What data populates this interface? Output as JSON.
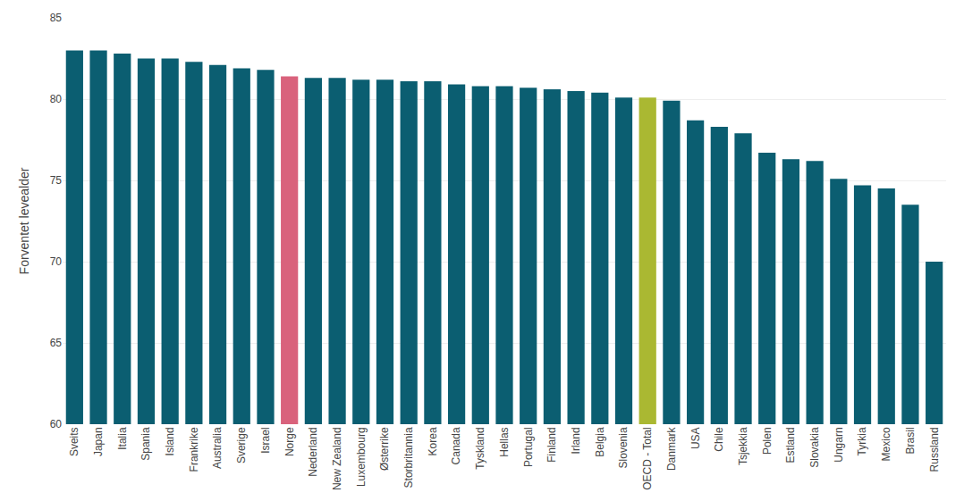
{
  "chart_data": {
    "type": "bar",
    "categories": [
      "Sveits",
      "Japan",
      "Italia",
      "Spania",
      "Island",
      "Frankrike",
      "Australia",
      "Sverige",
      "Israel",
      "Norge",
      "Nederland",
      "New Zealand",
      "Luxembourg",
      "Østerrike",
      "Storbritannia",
      "Korea",
      "Canada",
      "Tyskland",
      "Hellas",
      "Portugal",
      "Finland",
      "Irland",
      "Belgia",
      "Slovenia",
      "OECD - Total",
      "Danmark",
      "USA",
      "Chile",
      "Tsjekkia",
      "Polen",
      "Estland",
      "Slovakia",
      "Ungarn",
      "Tyrkia",
      "Mexico",
      "Brasil",
      "Russland"
    ],
    "values": [
      83.0,
      83.0,
      82.8,
      82.5,
      82.5,
      82.3,
      82.1,
      81.9,
      81.8,
      81.4,
      81.3,
      81.3,
      81.2,
      81.2,
      81.1,
      81.1,
      80.9,
      80.8,
      80.8,
      80.7,
      80.6,
      80.5,
      80.4,
      80.1,
      80.1,
      79.9,
      78.7,
      78.3,
      77.9,
      76.7,
      76.3,
      76.2,
      75.1,
      74.7,
      74.5,
      73.5,
      70.0
    ],
    "colors": [
      "#0b5e71",
      "#0b5e71",
      "#0b5e71",
      "#0b5e71",
      "#0b5e71",
      "#0b5e71",
      "#0b5e71",
      "#0b5e71",
      "#0b5e71",
      "#d9627c",
      "#0b5e71",
      "#0b5e71",
      "#0b5e71",
      "#0b5e71",
      "#0b5e71",
      "#0b5e71",
      "#0b5e71",
      "#0b5e71",
      "#0b5e71",
      "#0b5e71",
      "#0b5e71",
      "#0b5e71",
      "#0b5e71",
      "#0b5e71",
      "#aab832",
      "#0b5e71",
      "#0b5e71",
      "#0b5e71",
      "#0b5e71",
      "#0b5e71",
      "#0b5e71",
      "#0b5e71",
      "#0b5e71",
      "#0b5e71",
      "#0b5e71",
      "#0b5e71",
      "#0b5e71"
    ],
    "ylabel": "Forventet levealder",
    "ylim": [
      60,
      85
    ],
    "yticks": [
      60,
      65,
      70,
      75,
      80,
      85
    ],
    "grid": true
  }
}
